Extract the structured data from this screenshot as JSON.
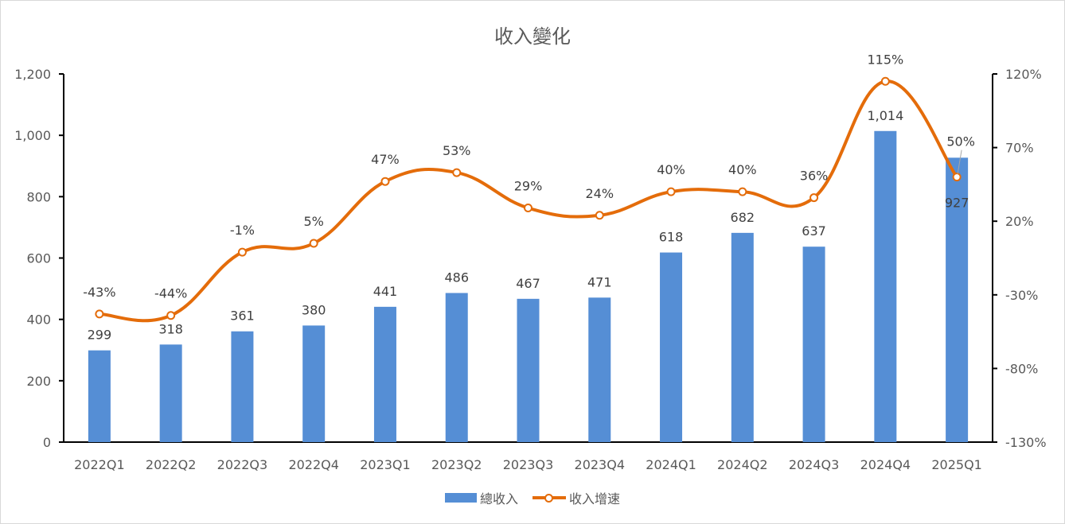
{
  "chart_data": {
    "type": "bar+line",
    "title": "收入變化",
    "categories": [
      "2022Q1",
      "2022Q2",
      "2022Q3",
      "2022Q4",
      "2023Q1",
      "2023Q2",
      "2023Q3",
      "2023Q4",
      "2024Q1",
      "2024Q2",
      "2024Q3",
      "2024Q4",
      "2025Q1"
    ],
    "series": [
      {
        "name": "總收入",
        "type": "bar",
        "axis": "left",
        "color": "#558ED5",
        "values": [
          299,
          318,
          361,
          380,
          441,
          486,
          467,
          471,
          618,
          682,
          637,
          1014,
          927
        ],
        "labels": [
          "299",
          "318",
          "361",
          "380",
          "441",
          "486",
          "467",
          "471",
          "618",
          "682",
          "637",
          "1,014",
          "927"
        ]
      },
      {
        "name": "收入增速",
        "type": "line",
        "axis": "right",
        "color": "#E46C0A",
        "smooth": true,
        "marker": "circle-hollow",
        "values": [
          -43,
          -44,
          -1,
          5,
          47,
          53,
          29,
          24,
          40,
          40,
          36,
          115,
          50
        ],
        "labels": [
          "-43%",
          "-44%",
          "-1%",
          "5%",
          "47%",
          "53%",
          "29%",
          "24%",
          "40%",
          "40%",
          "36%",
          "115%",
          "50%"
        ]
      }
    ],
    "left_axis": {
      "min": 0,
      "max": 1200,
      "ticks": [
        "0",
        "200",
        "400",
        "600",
        "800",
        "1,000",
        "1,200"
      ]
    },
    "right_axis": {
      "min": -130,
      "max": 120,
      "ticks": [
        "-130%",
        "-80%",
        "-30%",
        "20%",
        "70%",
        "120%"
      ]
    },
    "grid": false,
    "legend_position": "bottom"
  }
}
